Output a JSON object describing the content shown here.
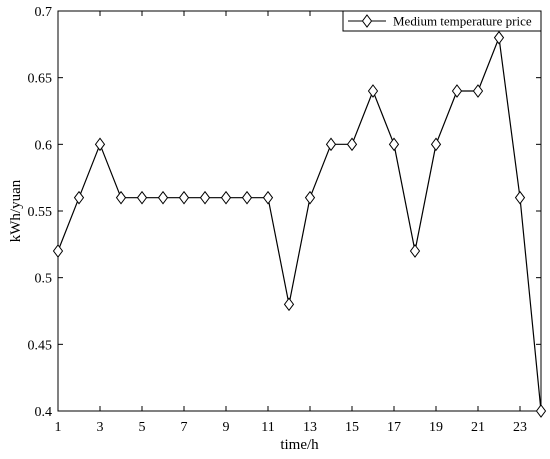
{
  "chart_data": {
    "type": "line",
    "xlabel": "time/h",
    "ylabel": "kWh/yuan",
    "xlim": [
      1,
      24
    ],
    "ylim": [
      0.4,
      0.7
    ],
    "xticks": [
      1,
      3,
      5,
      7,
      9,
      11,
      13,
      15,
      17,
      19,
      21,
      23
    ],
    "yticks": [
      0.4,
      0.45,
      0.5,
      0.55,
      0.6,
      0.65,
      0.7
    ],
    "ytick_labels": [
      "0.4",
      "0.45",
      "0.5",
      "0.55",
      "0.6",
      "0.65",
      "0.7"
    ],
    "grid": false,
    "legend_position": "top-right",
    "series": [
      {
        "name": "Medium temperature price",
        "color": "#000000",
        "marker": "diamond",
        "x": [
          1,
          2,
          3,
          4,
          5,
          6,
          7,
          8,
          9,
          10,
          11,
          12,
          13,
          14,
          15,
          16,
          17,
          18,
          19,
          20,
          21,
          22,
          23,
          24
        ],
        "y": [
          0.52,
          0.56,
          0.6,
          0.56,
          0.56,
          0.56,
          0.56,
          0.56,
          0.56,
          0.56,
          0.56,
          0.48,
          0.56,
          0.6,
          0.6,
          0.64,
          0.6,
          0.52,
          0.6,
          0.64,
          0.64,
          0.68,
          0.56,
          0.4
        ]
      }
    ]
  }
}
